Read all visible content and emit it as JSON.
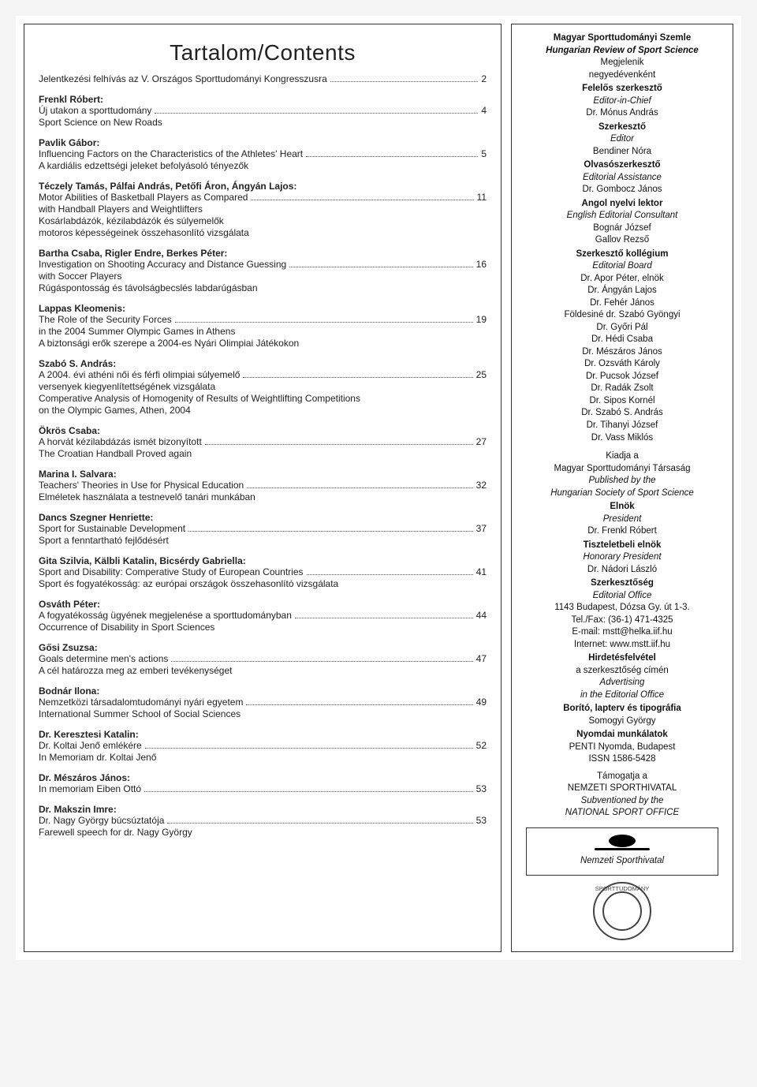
{
  "toc": {
    "title": "Tartalom/Contents",
    "entries": [
      {
        "lines": [
          {
            "text": "Jelentkezési felhívás az V. Országos Sporttudományi Kongresszusra",
            "page": "2"
          }
        ]
      },
      {
        "author": "Frenkl Róbert:",
        "lines": [
          {
            "text": "Új utakon a sporttudomány",
            "page": "4"
          },
          {
            "text": "Sport Science on New Roads"
          }
        ]
      },
      {
        "author": "Pavlik Gábor:",
        "lines": [
          {
            "text": "Influencing Factors on the Characteristics of the Athletes' Heart",
            "page": "5"
          },
          {
            "text": "A kardiális edzettségi jeleket befolyásoló tényezők"
          }
        ]
      },
      {
        "author": "Téczely Tamás, Pálfai András, Petőfi Áron, Ángyán Lajos:",
        "lines": [
          {
            "text": "Motor Abilities of Basketball Players as Compared",
            "page": "11"
          },
          {
            "text": "with Handball Players and Weightlifters"
          },
          {
            "text": "Kosárlabdázók, kézilabdázók és súlyemelők"
          },
          {
            "text": "motoros képességeinek összehasonlító vizsgálata"
          }
        ]
      },
      {
        "author": "Bartha Csaba, Rigler Endre, Berkes Péter:",
        "lines": [
          {
            "text": "Investigation on Shooting Accuracy and Distance Guessing",
            "page": "16"
          },
          {
            "text": "with Soccer Players"
          },
          {
            "text": "Rúgáspontosság és távolságbecslés labdarúgásban"
          }
        ]
      },
      {
        "author": "Lappas Kleomenis:",
        "lines": [
          {
            "text": "The Role of the Security Forces",
            "page": "19"
          },
          {
            "text": "in the 2004 Summer Olympic Games in Athens"
          },
          {
            "text": "A biztonsági erők szerepe a 2004-es Nyári Olimpiai Játékokon"
          }
        ]
      },
      {
        "author": "Szabó S. András:",
        "lines": [
          {
            "text": "A 2004. évi athéni női és férfi olimpiai súlyemelő",
            "page": "25"
          },
          {
            "text": "versenyek kiegyenlítettségének vizsgálata"
          },
          {
            "text": "Comperative Analysis of Homogenity of Results of Weightlifting Competitions"
          },
          {
            "text": "on the Olympic Games, Athen, 2004"
          }
        ]
      },
      {
        "author": "Ökrös Csaba:",
        "lines": [
          {
            "text": "A horvát kézilabdázás ismét bizonyított",
            "page": "27"
          },
          {
            "text": "The Croatian Handball Proved again"
          }
        ]
      },
      {
        "author": "Marina I. Salvara:",
        "lines": [
          {
            "text": "Teachers' Theories in Use for Physical Education",
            "page": "32"
          },
          {
            "text": "Elméletek használata a testnevelő tanári munkában"
          }
        ]
      },
      {
        "author": "Dancs Szegner Henriette:",
        "lines": [
          {
            "text": "Sport for Sustainable Development",
            "page": "37"
          },
          {
            "text": "Sport a fenntartható fejlődésért"
          }
        ]
      },
      {
        "author": "Gita Szilvia, Kälbli Katalin, Bicsérdy Gabriella:",
        "lines": [
          {
            "text": "Sport and Disability: Comperative Study of European Countries",
            "page": "41"
          },
          {
            "text": "Sport és fogyatékosság: az európai országok összehasonlító vizsgálata"
          }
        ]
      },
      {
        "author": "Osváth Péter:",
        "lines": [
          {
            "text": "A fogyatékosság ügyének megjelenése a sporttudományban",
            "page": "44"
          },
          {
            "text": "Occurrence of Disability in Sport Sciences"
          }
        ]
      },
      {
        "author": "Gősi Zsuzsa:",
        "lines": [
          {
            "text": "Goals determine men's actions",
            "page": "47"
          },
          {
            "text": "A cél határozza meg az emberi tevékenységet"
          }
        ]
      },
      {
        "author": "Bodnár Ilona:",
        "lines": [
          {
            "text": "Nemzetközi társadalomtudományi nyári egyetem",
            "page": "49"
          },
          {
            "text": "International Summer School of Social Sciences"
          }
        ]
      },
      {
        "author": "Dr. Keresztesi Katalin:",
        "lines": [
          {
            "text": "Dr. Koltai Jenő emlékére",
            "page": "52"
          },
          {
            "text": "In Memoriam dr. Koltai Jenő"
          }
        ]
      },
      {
        "author": "Dr. Mészáros János:",
        "lines": [
          {
            "text": "In memoriam Eiben Ottó",
            "page": "53"
          }
        ]
      },
      {
        "author": "Dr. Makszin Imre:",
        "lines": [
          {
            "text": "Dr. Nagy György búcsúztatója",
            "page": "53"
          },
          {
            "text": "Farewell speech for dr. Nagy György"
          }
        ]
      }
    ]
  },
  "masthead": {
    "journal_hu": "Magyar Sporttudományi Szemle",
    "journal_en": "Hungarian Review of Sport Science",
    "freq_hu": "Megjelenik",
    "freq_hu2": "negyedévenként",
    "roles": [
      {
        "role": "Felelős szerkesztő",
        "role_en": "Editor-in-Chief",
        "names": [
          "Dr. Mónus András"
        ]
      },
      {
        "role": "Szerkesztő",
        "role_en": "Editor",
        "names": [
          "Bendiner Nóra"
        ]
      },
      {
        "role": "Olvasószerkesztő",
        "role_en": "Editorial Assistance",
        "names": [
          "Dr. Gombocz János"
        ]
      },
      {
        "role": "Angol nyelvi lektor",
        "role_en": "English Editorial Consultant",
        "names": [
          "Bognár József",
          "Gallov Rezső"
        ]
      },
      {
        "role": "Szerkesztő kollégium",
        "role_en": "Editorial Board",
        "names": [
          "Dr. Apor Péter, elnök",
          "Dr. Ángyán Lajos",
          "Dr. Fehér János",
          "Földesiné dr. Szabó Gyöngyi",
          "Dr. Győri Pál",
          "Dr. Hédi Csaba",
          "Dr. Mészáros János",
          "Dr. Ozsváth Károly",
          "Dr. Pucsok József",
          "Dr. Radák Zsolt",
          "Dr. Sipos Kornél",
          "Dr. Szabó S. András",
          "Dr. Tihanyi József",
          "Dr. Vass Miklós"
        ]
      }
    ],
    "publisher": {
      "hu": "Kiadja a",
      "org_hu": "Magyar Sporttudományi Társaság",
      "en": "Published by the",
      "org_en": "Hungarian Society of Sport Science"
    },
    "president": {
      "role_hu": "Elnök",
      "role_en": "President",
      "name": "Dr. Frenkl Róbert"
    },
    "hon_president": {
      "role_hu": "Tiszteletbeli elnök",
      "role_en": "Honorary President",
      "name": "Dr. Nádori László"
    },
    "office": {
      "role_hu": "Szerkesztőség",
      "role_en": "Editorial Office",
      "addr": "1143 Budapest, Dózsa Gy. út 1-3.",
      "phone": "Tel./Fax: (36-1) 471-4325",
      "email": "E-mail: mstt@helka.iif.hu",
      "web": "Internet: www.mstt.iif.hu"
    },
    "ads": {
      "hu": "Hirdetésfelvétel",
      "hu2": "a szerkesztőség címén",
      "en": "Advertising",
      "en2": "in the Editorial Office"
    },
    "design": {
      "hu": "Borító, lapterv és tipográfia",
      "name": "Somogyi György"
    },
    "print": {
      "hu": "Nyomdai munkálatok",
      "name": "PENTI Nyomda, Budapest",
      "issn": "ISSN 1586-5428"
    },
    "support": {
      "hu": "Támogatja a",
      "org": "NEMZETI SPORTHIVATAL",
      "en": "Subventioned by the",
      "org_en": "NATIONAL SPORT OFFICE"
    },
    "logo_caption": "Nemzeti Sporthivatal",
    "seal_text": "SPORTTUDOMÁNY"
  }
}
